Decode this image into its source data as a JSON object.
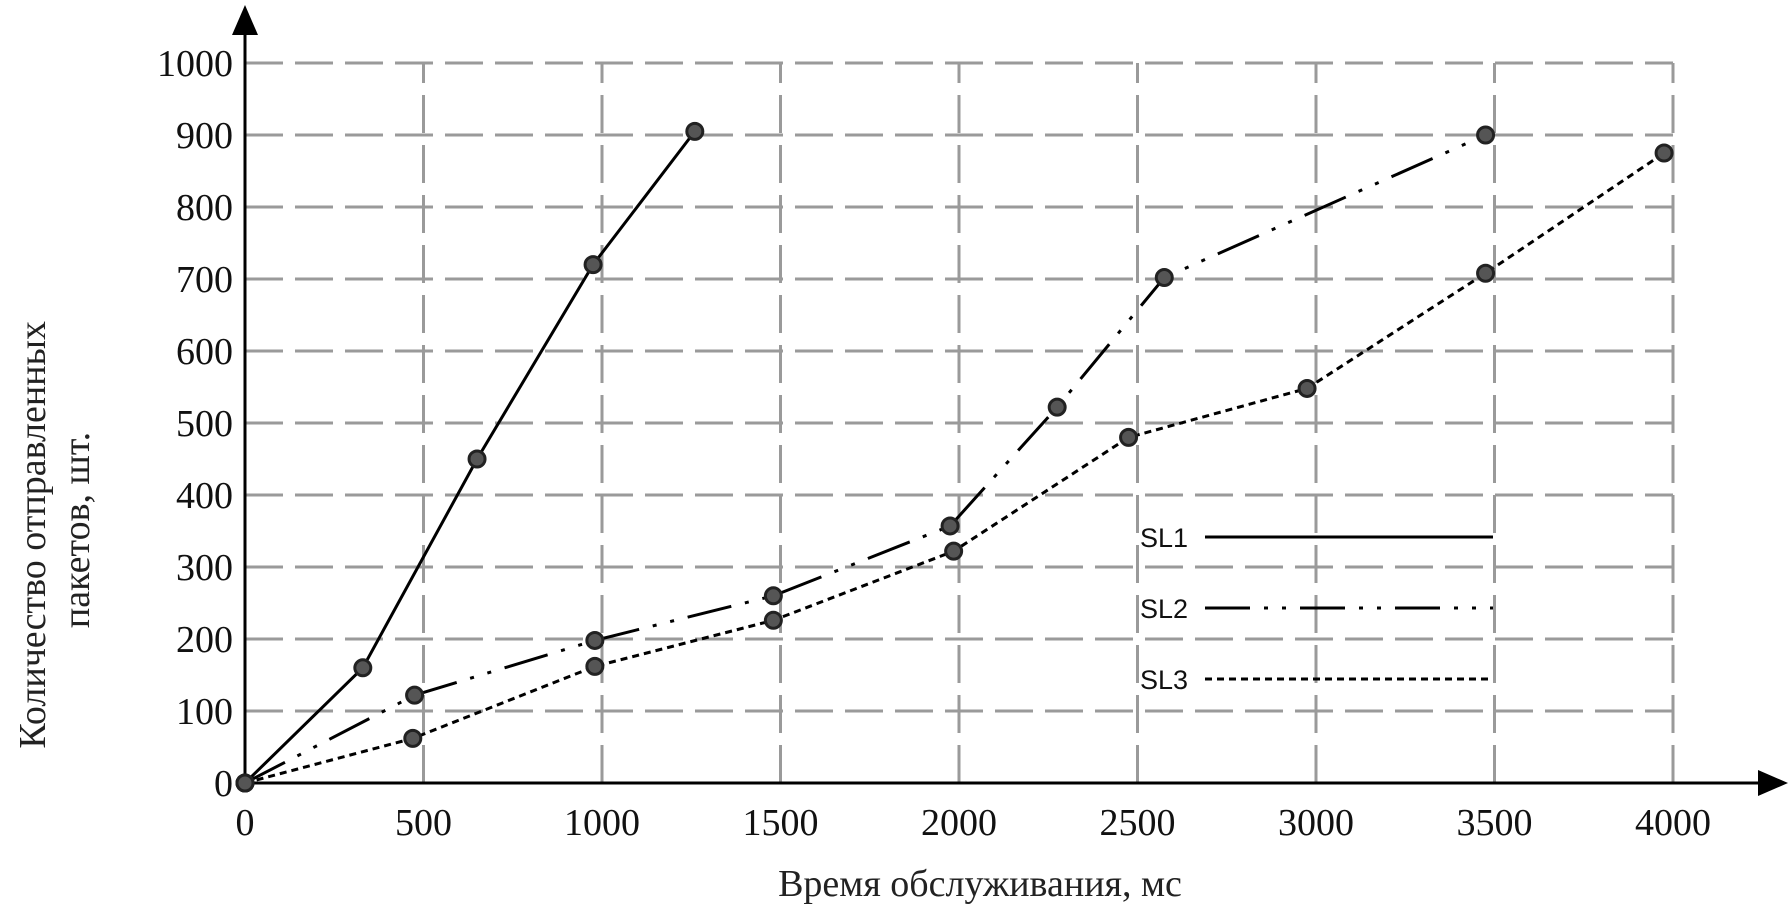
{
  "chart_data": {
    "type": "line",
    "xlabel": "Время обслуживания, мс",
    "ylabel": "Количество отправленных пакетов, шт.",
    "xlim": [
      0,
      4000
    ],
    "ylim": [
      0,
      1000
    ],
    "x_ticks": [
      0,
      500,
      1000,
      1500,
      2000,
      2500,
      3000,
      3500,
      4000
    ],
    "y_ticks": [
      0,
      100,
      200,
      300,
      400,
      500,
      600,
      700,
      800,
      900,
      1000
    ],
    "grid": true,
    "legend_position": "center-right",
    "series": [
      {
        "name": "SL1",
        "style": "solid",
        "points": [
          [
            0,
            0
          ],
          [
            330,
            160
          ],
          [
            650,
            450
          ],
          [
            975,
            720
          ],
          [
            1260,
            905
          ]
        ]
      },
      {
        "name": "SL2",
        "style": "dash-dot-dot",
        "points": [
          [
            0,
            0
          ],
          [
            475,
            122
          ],
          [
            980,
            198
          ],
          [
            1480,
            260
          ],
          [
            1975,
            357
          ],
          [
            2275,
            522
          ],
          [
            2575,
            702
          ],
          [
            3475,
            900
          ]
        ]
      },
      {
        "name": "SL3",
        "style": "dotted",
        "points": [
          [
            0,
            0
          ],
          [
            470,
            62
          ],
          [
            980,
            162
          ],
          [
            1480,
            226
          ],
          [
            1985,
            322
          ],
          [
            2475,
            480
          ],
          [
            2975,
            548
          ],
          [
            3475,
            708
          ],
          [
            3975,
            875
          ]
        ]
      }
    ]
  }
}
